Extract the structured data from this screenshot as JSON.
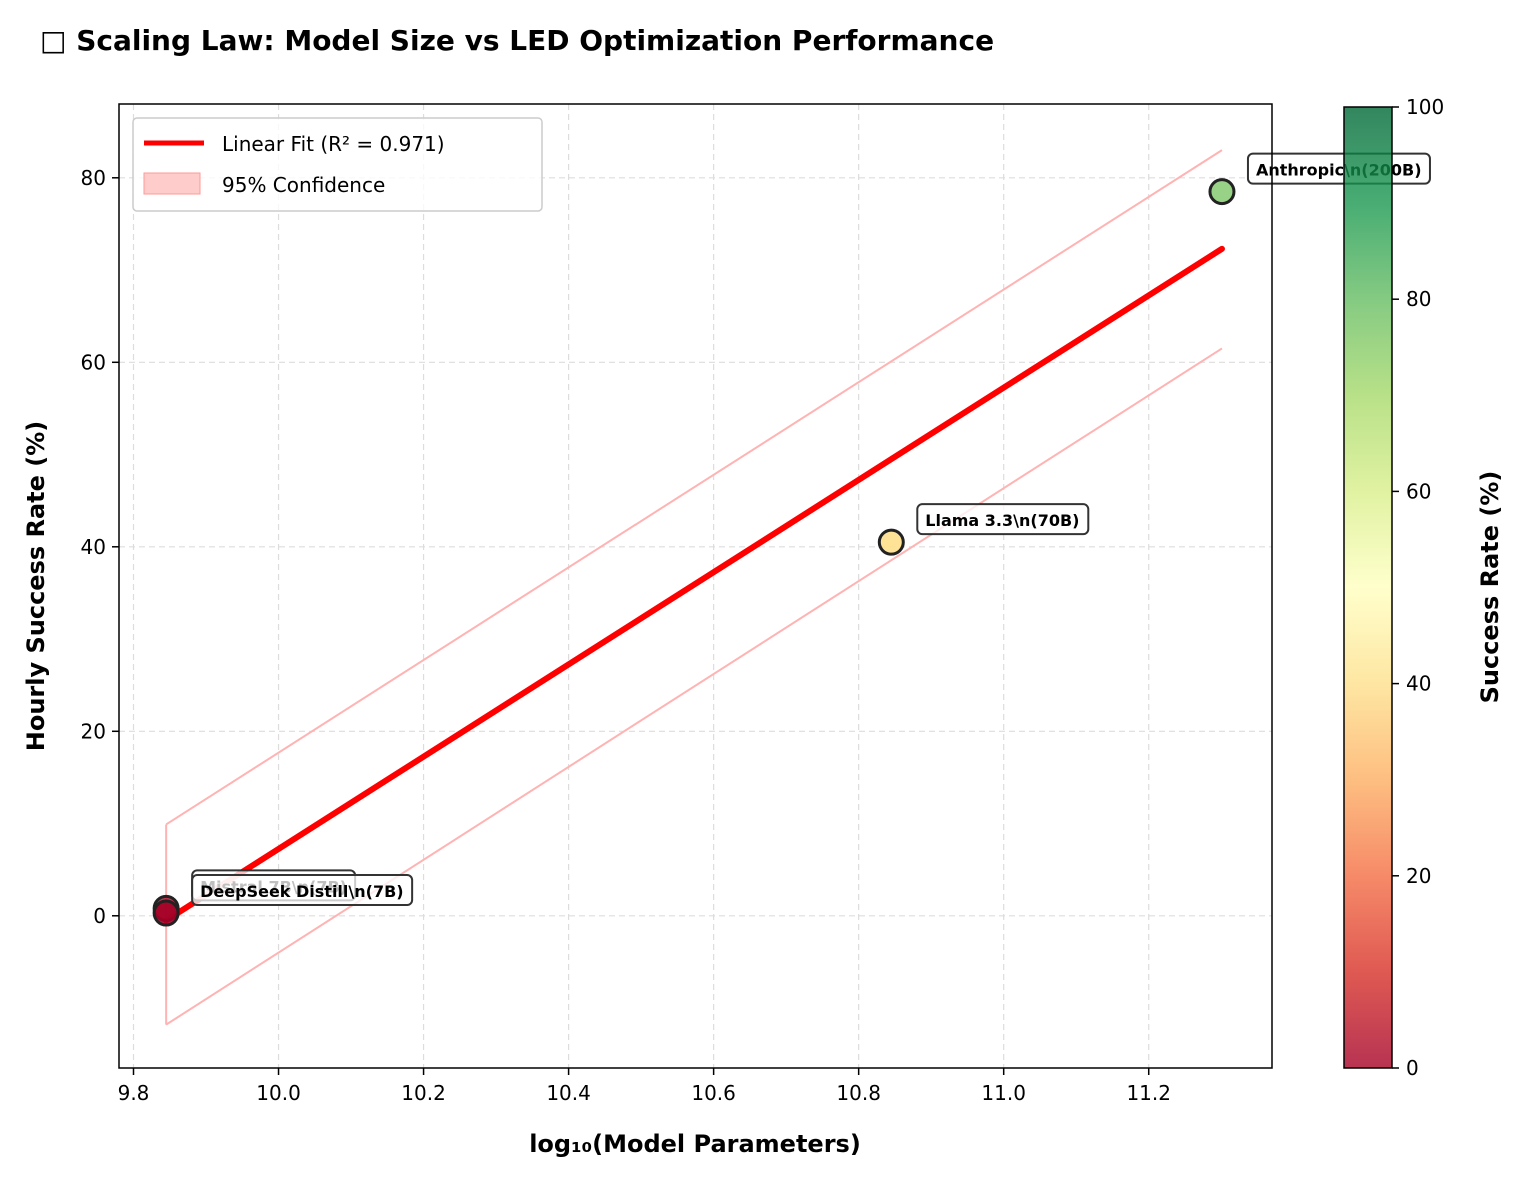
{
  "chart_data": {
    "type": "scatter",
    "title": "□ Scaling Law: Model Size vs LED Optimization Performance",
    "xlabel": "log₁₀(Model Parameters)",
    "ylabel": "Hourly Success Rate (%)",
    "xlim": [
      9.78,
      11.37
    ],
    "ylim": [
      -16.5,
      88
    ],
    "xticks": [
      "9.8",
      "10.0",
      "10.2",
      "10.4",
      "10.6",
      "10.8",
      "11.0",
      "11.2"
    ],
    "yticks": [
      "0",
      "20",
      "40",
      "60",
      "80"
    ],
    "grid": true,
    "points": [
      {
        "label": "Mistral 7B\\n(7B)",
        "x": 9.845,
        "y": 0.8,
        "color": "#b8203c"
      },
      {
        "label": "DeepSeek Distill\\n(7B)",
        "x": 9.845,
        "y": 0.3,
        "color": "#a50026"
      },
      {
        "label": "Llama 3.3\\n(70B)",
        "x": 10.845,
        "y": 40.5,
        "color": "#fee08b"
      },
      {
        "label": "Anthropic\\n(200B)",
        "x": 11.301,
        "y": 78.5,
        "color": "#8dcd7a"
      }
    ],
    "fit": {
      "name": "Linear Fit (R² = 0.971)",
      "x": [
        9.845,
        11.301
      ],
      "y": [
        -0.5,
        72.3
      ],
      "color": "#ff0000"
    },
    "confidence": {
      "name": "95% Confidence",
      "upper": [
        9.9,
        83.0
      ],
      "lower": [
        -11.8,
        61.5
      ],
      "color": "#ffb3b3"
    },
    "legend_position": "top-left",
    "colorbar": {
      "label": "Success Rate (%)",
      "range": [
        0,
        100
      ],
      "ticks": [
        "0",
        "20",
        "40",
        "60",
        "80",
        "100"
      ],
      "colormap": [
        "#a50026",
        "#d73027",
        "#f46d43",
        "#fdae61",
        "#fee08b",
        "#ffffbf",
        "#d9ef8b",
        "#a6d96a",
        "#66bd63",
        "#1a9850",
        "#006837"
      ]
    }
  }
}
